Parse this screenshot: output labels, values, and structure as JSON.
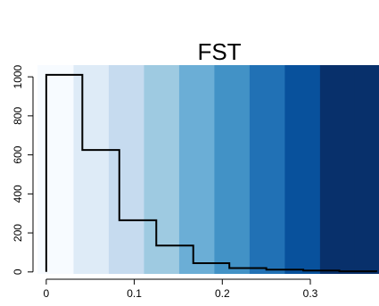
{
  "chart_data": {
    "type": "bar",
    "title": "FST",
    "xlabel": "",
    "ylabel": "",
    "xlim": [
      -0.01,
      0.378
    ],
    "ylim": [
      -10,
      1060
    ],
    "x_ticks": [
      0,
      0.1,
      0.2,
      0.3
    ],
    "x_tick_labels": [
      "0",
      "0.1",
      "0.2",
      "0.3"
    ],
    "y_ticks": [
      0,
      200,
      400,
      600,
      800,
      1000
    ],
    "y_tick_labels": [
      "0",
      "200",
      "400",
      "600",
      "800",
      "1000"
    ],
    "grid": false,
    "histogram": {
      "bin_edges": [
        0,
        0.041,
        0.083,
        0.125,
        0.167,
        0.208,
        0.25,
        0.292,
        0.333,
        0.375
      ],
      "counts": [
        1010,
        625,
        265,
        135,
        45,
        20,
        12,
        7,
        3
      ]
    },
    "background_bands": {
      "edges": [
        -0.01,
        0.031,
        0.071,
        0.111,
        0.151,
        0.191,
        0.231,
        0.271,
        0.311,
        0.35,
        0.378
      ],
      "colors": [
        "#f7fbff",
        "#deebf7",
        "#c6dbef",
        "#9ecae1",
        "#6baed6",
        "#4292c6",
        "#2171b5",
        "#08519c",
        "#08306b",
        "#08306b"
      ]
    },
    "line_color": "#000000"
  }
}
